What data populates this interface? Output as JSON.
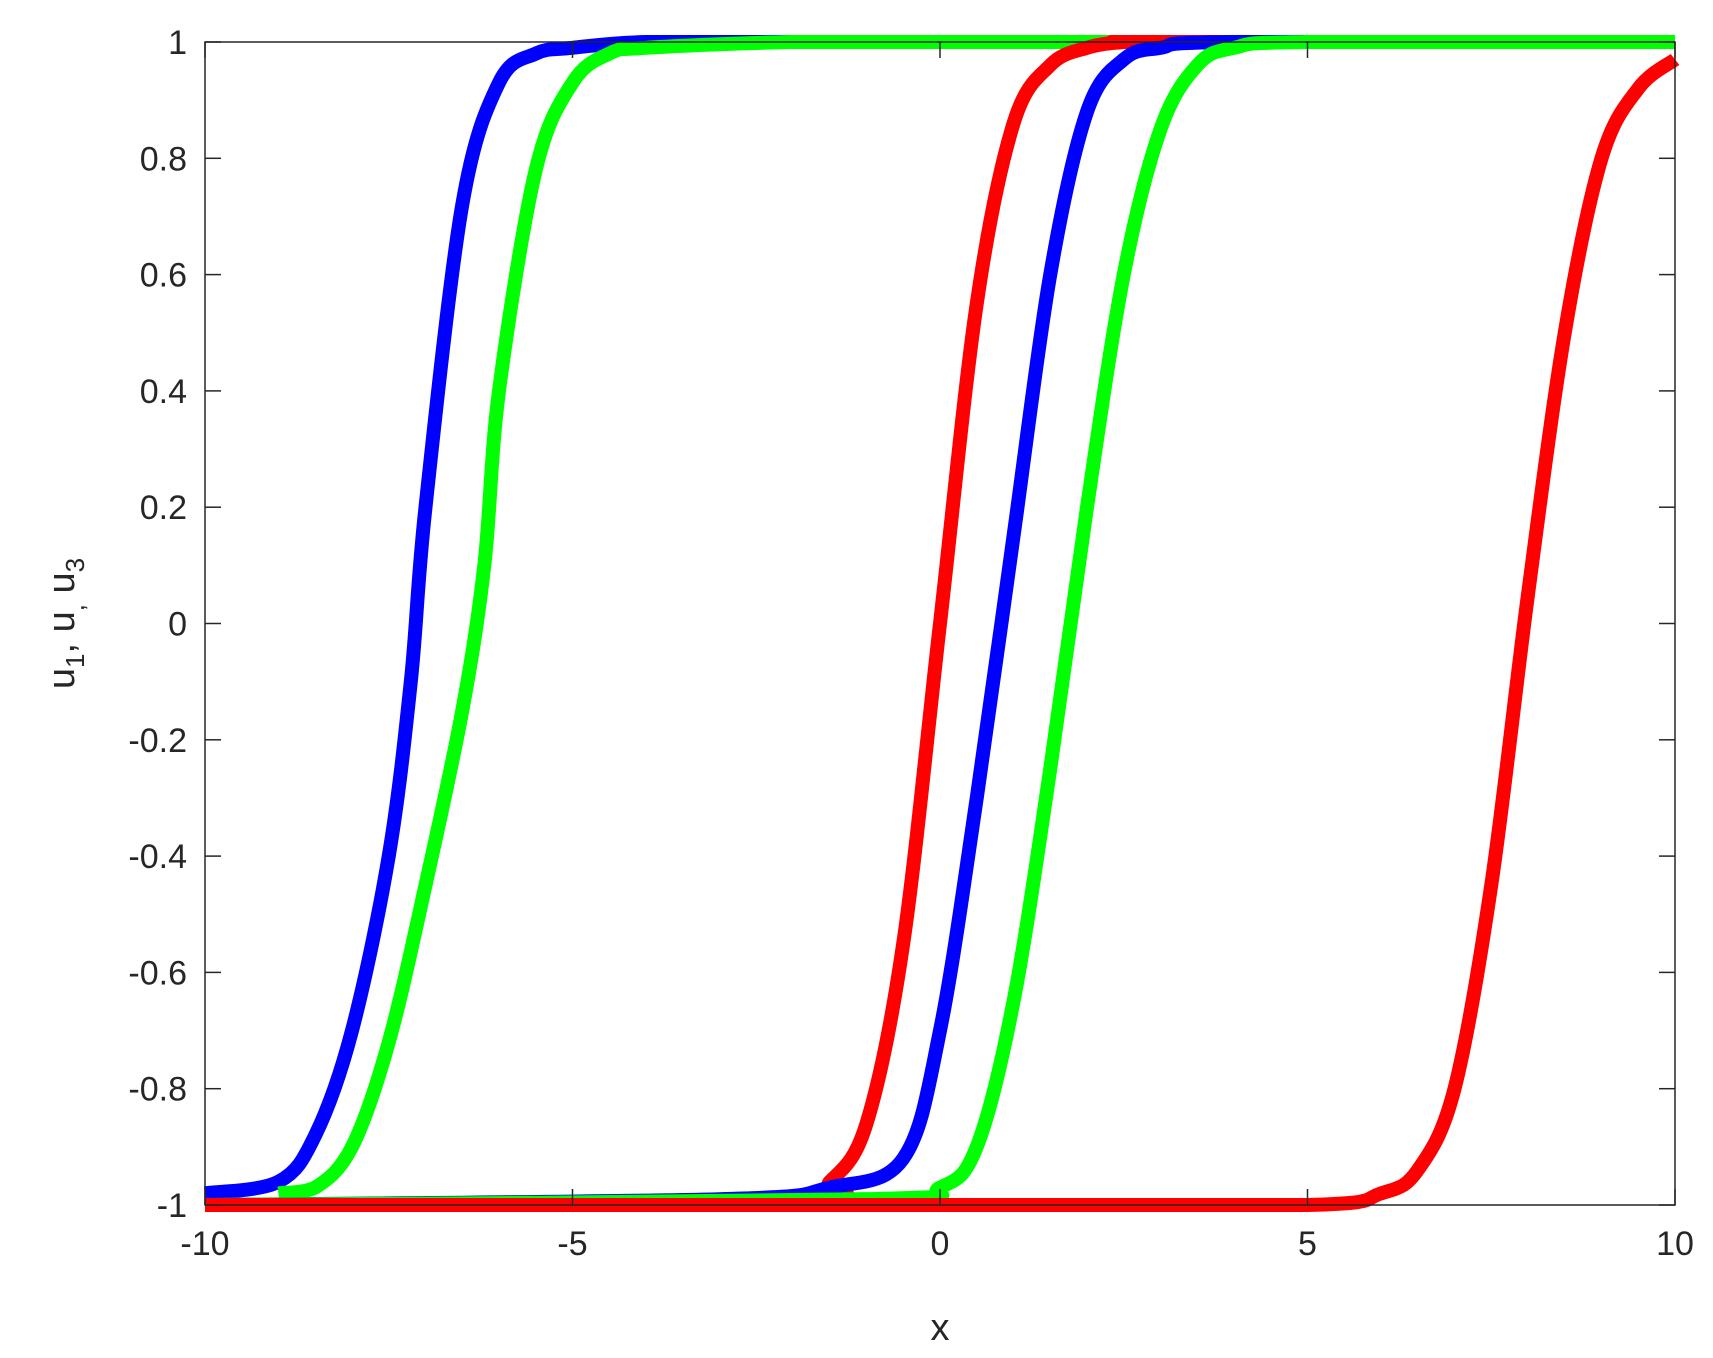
{
  "chart_data": {
    "type": "line",
    "title": "",
    "xlabel": "x",
    "ylabel": "u",
    "xlim": [
      -10,
      10
    ],
    "ylim": [
      -1,
      1
    ],
    "xticks": [
      "-10",
      "-5",
      "0",
      "5",
      "10"
    ],
    "yticks": [
      "-1",
      "-0.8",
      "-0.6",
      "-0.4",
      "-0.2",
      "0",
      "0.2",
      "0.4",
      "0.6",
      "0.8",
      "1"
    ],
    "grid": false,
    "legend": "none",
    "series": [
      {
        "color": "#0000ff",
        "x": [
          -10,
          -9,
          -8.5,
          -8,
          -7.5,
          -7.2,
          -7,
          -6.5,
          -6,
          -5.5,
          -5,
          -4,
          -2,
          0,
          2,
          5,
          10
        ],
        "y": [
          -0.98,
          -0.96,
          -0.88,
          -0.7,
          -0.4,
          -0.1,
          0.2,
          0.72,
          0.93,
          0.98,
          0.99,
          1,
          1,
          1,
          1,
          1,
          1
        ]
      },
      {
        "color": "#00ff00",
        "x": [
          -9,
          -8.5,
          -8,
          -7.5,
          -7,
          -6.5,
          -6.2,
          -6,
          -5.5,
          -5,
          -4.5,
          -4,
          -2,
          0,
          5,
          10
        ],
        "y": [
          -0.98,
          -0.97,
          -0.9,
          -0.72,
          -0.45,
          -0.15,
          0.1,
          0.4,
          0.78,
          0.93,
          0.98,
          0.99,
          1,
          1,
          1,
          1
        ]
      },
      {
        "color": "#ff0000",
        "x": [
          -10,
          -2,
          -1.5,
          -1,
          -0.5,
          0,
          0.5,
          1,
          1.5,
          2,
          2.5,
          3,
          10
        ],
        "y": [
          -1,
          -0.99,
          -0.96,
          -0.86,
          -0.55,
          0.0,
          0.55,
          0.86,
          0.96,
          0.99,
          1,
          1,
          1
        ]
      },
      {
        "color": "#0000ff",
        "x": [
          -10,
          -3,
          -1.5,
          -0.5,
          0,
          0.5,
          1,
          1.5,
          2,
          2.5,
          3,
          4,
          10
        ],
        "y": [
          -1,
          -0.99,
          -0.97,
          -0.92,
          -0.7,
          -0.3,
          0.15,
          0.6,
          0.88,
          0.97,
          0.99,
          1,
          1
        ]
      },
      {
        "color": "#00ff00",
        "x": [
          -10,
          -1,
          0,
          0.5,
          1,
          1.5,
          2,
          2.5,
          3,
          3.5,
          4,
          5,
          10
        ],
        "y": [
          -1,
          -0.99,
          -0.97,
          -0.9,
          -0.65,
          -0.25,
          0.2,
          0.6,
          0.85,
          0.96,
          0.99,
          1,
          1
        ]
      },
      {
        "color": "#ff0000",
        "x": [
          -10,
          0,
          5,
          6,
          6.5,
          7,
          7.5,
          8,
          8.5,
          9,
          9.5,
          10
        ],
        "y": [
          -1,
          -1,
          -1,
          -0.98,
          -0.94,
          -0.8,
          -0.45,
          0.05,
          0.5,
          0.8,
          0.92,
          0.97
        ]
      }
    ]
  }
}
